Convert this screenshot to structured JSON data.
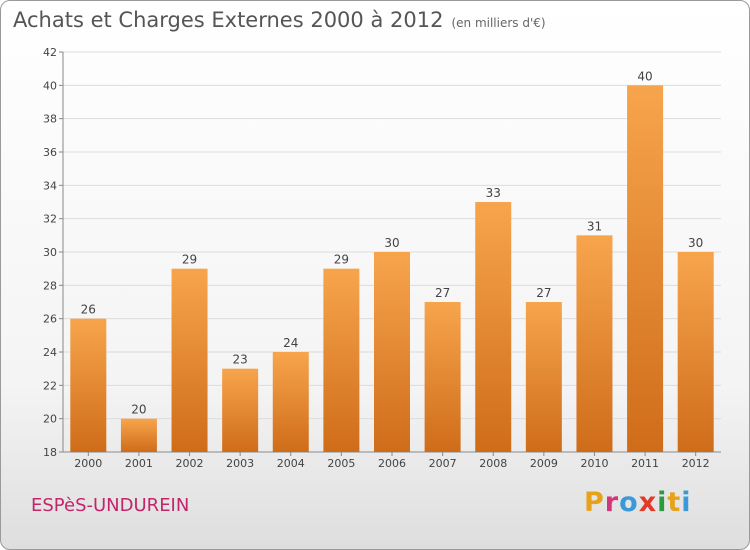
{
  "header": {
    "title": "Achats et Charges Externes 2000 à 2012",
    "unit": "(en milliers d'€)"
  },
  "footer": {
    "commune": "ESPèS-UNDUREIN",
    "logo_letters": [
      "P",
      "r",
      "o",
      "x",
      "i",
      "t",
      "i"
    ],
    "logo_colors": [
      "#e8a21a",
      "#d4367a",
      "#3a9ad9",
      "#e23a28",
      "#2d9a3e",
      "#e8a21a",
      "#3a9ad9"
    ]
  },
  "chart_data": {
    "type": "bar",
    "categories": [
      "2000",
      "2001",
      "2002",
      "2003",
      "2004",
      "2005",
      "2006",
      "2007",
      "2008",
      "2009",
      "2010",
      "2011",
      "2012"
    ],
    "values": [
      26,
      20,
      29,
      23,
      24,
      29,
      30,
      27,
      33,
      27,
      31,
      40,
      30
    ],
    "ylim": [
      18,
      42
    ],
    "yticks": [
      18,
      20,
      22,
      24,
      26,
      28,
      30,
      32,
      34,
      36,
      38,
      40,
      42
    ],
    "grid": true,
    "bar_color_top": "#f7a54d",
    "bar_color_bottom": "#cf6c1a"
  }
}
